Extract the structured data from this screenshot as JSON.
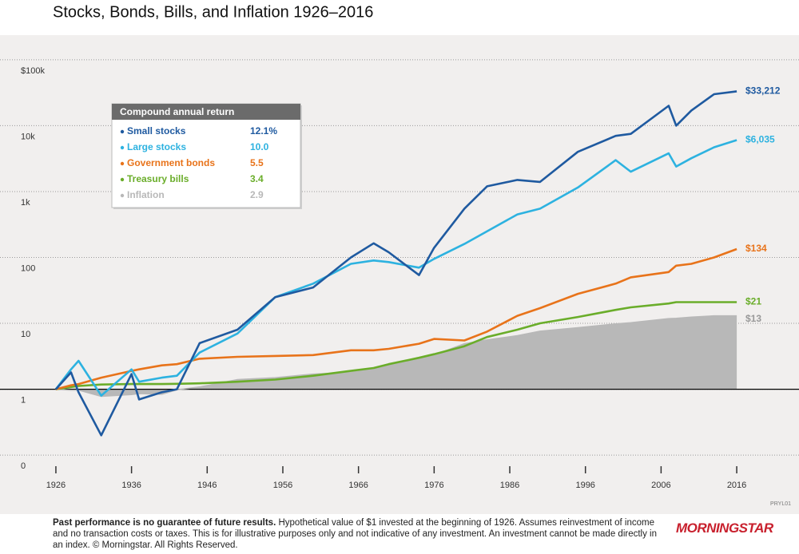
{
  "chart_data": {
    "type": "line",
    "title": "Stocks, Bonds, Bills, and Inflation 1926–2016",
    "log_scale": true,
    "grid": true,
    "x": [
      1926,
      1928,
      1929,
      1932,
      1936,
      1937,
      1940,
      1942,
      1945,
      1950,
      1955,
      1960,
      1965,
      1968,
      1970,
      1974,
      1976,
      1980,
      1983,
      1987,
      1990,
      1995,
      2000,
      2002,
      2007,
      2008,
      2010,
      2013,
      2016
    ],
    "xlim": [
      1924,
      2018
    ],
    "xticks": [
      1926,
      1936,
      1946,
      1956,
      1966,
      1976,
      1986,
      1996,
      2006,
      2016
    ],
    "ylim": [
      0.05,
      200000
    ],
    "yticks": [
      {
        "value": 100000,
        "label": "$100k"
      },
      {
        "value": 10000,
        "label": "10k"
      },
      {
        "value": 1000,
        "label": "1k"
      },
      100,
      10,
      1,
      {
        "value": 0.1,
        "label": "0"
      }
    ],
    "legend": {
      "title": "Compound annual return",
      "position": "upper left"
    },
    "series": [
      {
        "name": "Small stocks",
        "color": "#1f5aa0",
        "annual_return": {
          "value": 12.1,
          "label": "12.1%"
        },
        "end_label": "$33,212",
        "values": [
          1,
          1.8,
          0.9,
          0.2,
          1.7,
          0.7,
          0.9,
          1.0,
          5.0,
          8,
          25,
          35,
          100,
          164,
          120,
          54,
          140,
          550,
          1200,
          1500,
          1400,
          4000,
          7000,
          7500,
          20000,
          10000,
          17000,
          30000,
          33212
        ]
      },
      {
        "name": "Large stocks",
        "color": "#2db2e0",
        "annual_return": {
          "value": 10.0,
          "label": "10.0"
        },
        "end_label": "$6,035",
        "values": [
          1,
          2.0,
          2.7,
          0.8,
          2.0,
          1.3,
          1.5,
          1.6,
          3.6,
          7,
          25,
          40,
          80,
          90,
          85,
          70,
          95,
          160,
          250,
          450,
          550,
          1150,
          3000,
          2000,
          3800,
          2400,
          3200,
          4700,
          6035
        ]
      },
      {
        "name": "Government bonds",
        "color": "#e8731a",
        "annual_return": {
          "value": 5.5,
          "label": "5.5"
        },
        "end_label": "$134",
        "values": [
          1,
          1.15,
          1.2,
          1.5,
          1.9,
          2.0,
          2.3,
          2.4,
          2.9,
          3.1,
          3.2,
          3.3,
          3.9,
          3.9,
          4.1,
          4.9,
          5.8,
          5.5,
          7.5,
          13,
          17,
          28,
          40,
          50,
          60,
          75,
          80,
          100,
          134
        ]
      },
      {
        "name": "Treasury bills",
        "color": "#6aad2a",
        "annual_return": {
          "value": 3.4,
          "label": "3.4"
        },
        "end_label": "$21",
        "values": [
          1,
          1.08,
          1.12,
          1.18,
          1.2,
          1.2,
          1.2,
          1.21,
          1.23,
          1.3,
          1.4,
          1.6,
          1.9,
          2.1,
          2.4,
          3.0,
          3.4,
          4.5,
          6.2,
          8,
          10,
          12.5,
          16,
          17.5,
          20,
          21,
          21,
          21,
          21
        ]
      },
      {
        "name": "Inflation",
        "color": "#b8b8b8",
        "area": true,
        "annual_return": {
          "value": 2.9,
          "label": "2.9"
        },
        "end_label": "$13",
        "values": [
          1,
          0.97,
          0.97,
          0.78,
          0.83,
          0.86,
          0.84,
          0.98,
          1.08,
          1.4,
          1.5,
          1.7,
          1.8,
          2.0,
          2.3,
          2.9,
          3.3,
          4.9,
          5.6,
          6.5,
          7.6,
          8.6,
          9.8,
          10.2,
          11.8,
          11.9,
          12.4,
          13,
          13
        ]
      }
    ],
    "code": "PRYL01",
    "footnote": {
      "bold": "Past performance is no guarantee of future results.",
      "text": "Hypothetical value of $1 invested at the beginning of 1926. Assumes reinvestment of income and no transaction costs or taxes. This is for illustrative purposes only and not indicative of any investment. An investment cannot be made directly in an index. © Morningstar. All Rights Reserved."
    },
    "brand": "MORNINGSTAR"
  }
}
